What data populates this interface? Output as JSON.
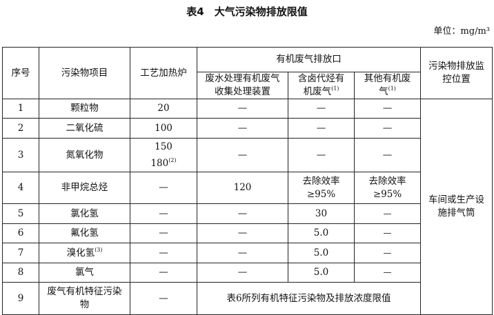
{
  "title": "表4　大气污染物排放限值",
  "unit": "单位：mg/m³",
  "headers": {
    "seq": "序号",
    "item": "污染物项目",
    "furnace": "工艺加热炉",
    "organic_group": "有机废气排放口",
    "wastewater": "废水处理有机废气收集处理装置",
    "halogen": "含卤代烃有机废气",
    "halogen_note": "(1)",
    "other": "其他有机废气",
    "other_note": "(1)",
    "monitor": "污染物排放监控位置"
  },
  "monitor_location": "车间或生产设施排气筒",
  "rows": [
    {
      "seq": "1",
      "item": "颗粒物",
      "furnace": "20",
      "wastewater": "—",
      "halogen": "—",
      "other": "—"
    },
    {
      "seq": "2",
      "item": "二氧化硫",
      "furnace": "100",
      "wastewater": "—",
      "halogen": "—",
      "other": "—"
    },
    {
      "seq": "3",
      "item": "氮氧化物",
      "furnace": "150",
      "furnace2": "180",
      "furnace2_note": "(2)",
      "wastewater": "—",
      "halogen": "—",
      "other": "—"
    },
    {
      "seq": "4",
      "item": "非甲烷总烃",
      "furnace": "—",
      "wastewater": "120",
      "halogen": "去除效率≥95%",
      "other": "去除效率≥95%"
    },
    {
      "seq": "5",
      "item": "氯化氢",
      "furnace": "—",
      "wastewater": "—",
      "halogen": "30",
      "other": "—"
    },
    {
      "seq": "6",
      "item": "氟化氢",
      "furnace": "—",
      "wastewater": "—",
      "halogen": "5.0",
      "other": "—"
    },
    {
      "seq": "7",
      "item": "溴化氢",
      "item_note": "(3)",
      "furnace": "—",
      "wastewater": "—",
      "halogen": "5.0",
      "other": "—"
    },
    {
      "seq": "8",
      "item": "氯气",
      "furnace": "—",
      "wastewater": "—",
      "halogen": "5.0",
      "other": "—"
    },
    {
      "seq": "9",
      "item": "废气有机特征污染物",
      "furnace": "—",
      "merged": "表6所列有机特征污染物及排放浓度限值"
    }
  ]
}
